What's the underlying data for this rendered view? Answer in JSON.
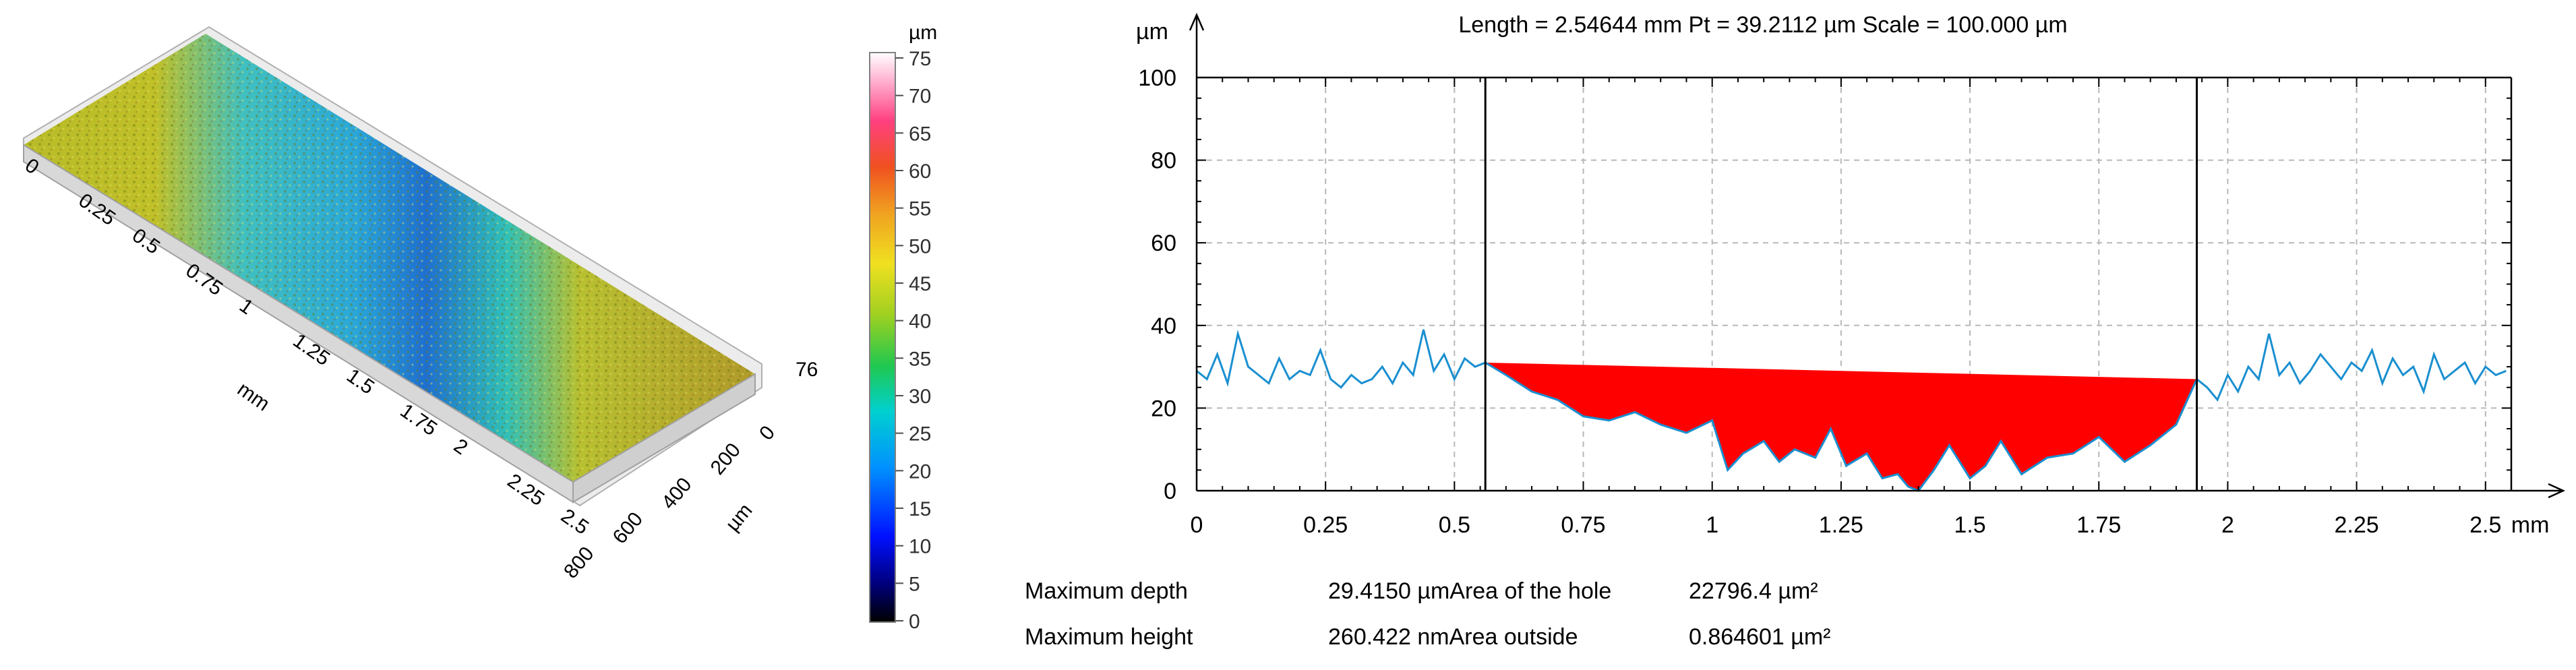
{
  "surface3d": {
    "x_ticks": [
      "0",
      "0.25",
      "0.5",
      "0.75",
      "1",
      "1.25",
      "1.5",
      "1.75",
      "2",
      "2.25",
      "2.5"
    ],
    "x_unit": "mm",
    "y_ticks": [
      "0",
      "200",
      "400",
      "600",
      "800"
    ],
    "y_unit": "µm",
    "z_max_label": "76",
    "colors": {
      "low": "#1030c0",
      "mid": "#20c0c8",
      "high": "#c8c020"
    }
  },
  "colorbar": {
    "unit": "µm",
    "ticks": [
      "75",
      "70",
      "65",
      "60",
      "55",
      "50",
      "45",
      "40",
      "35",
      "30",
      "25",
      "20",
      "15",
      "10",
      "5",
      "0"
    ]
  },
  "chart_data": {
    "type": "line",
    "title": "Length = 2.54644 mm  Pt = 39.2112 µm  Scale = 100.000 µm",
    "xlabel": "mm",
    "ylabel": "µm",
    "xlim": [
      0,
      2.55
    ],
    "ylim": [
      0,
      100
    ],
    "x_ticks": [
      0,
      0.25,
      0.5,
      0.75,
      1,
      1.25,
      1.5,
      1.75,
      2,
      2.25,
      2.5
    ],
    "x_tick_labels": [
      "0",
      "0.25",
      "0.5",
      "0.75",
      "1",
      "1.25",
      "1.5",
      "1.75",
      "2",
      "2.25",
      "2.5"
    ],
    "y_ticks": [
      0,
      20,
      40,
      60,
      80,
      100
    ],
    "grid": true,
    "cursors": [
      0.56,
      1.94
    ],
    "profile_color": "#1a8fd0",
    "fill_color": "#ff0000",
    "hole_top": [
      [
        0.56,
        31
      ],
      [
        1.94,
        27
      ]
    ],
    "series": [
      {
        "x": [
          0,
          0.02,
          0.04,
          0.06,
          0.08,
          0.1,
          0.12,
          0.14,
          0.16,
          0.18,
          0.2,
          0.22,
          0.24,
          0.26,
          0.28,
          0.3,
          0.32,
          0.34,
          0.36,
          0.38,
          0.4,
          0.42,
          0.44,
          0.46,
          0.48,
          0.5,
          0.52,
          0.54,
          0.56,
          0.6,
          0.65,
          0.7,
          0.75,
          0.8,
          0.85,
          0.9,
          0.95,
          1.0,
          1.03,
          1.06,
          1.1,
          1.13,
          1.16,
          1.2,
          1.23,
          1.26,
          1.3,
          1.33,
          1.36,
          1.38,
          1.4,
          1.43,
          1.46,
          1.5,
          1.53,
          1.56,
          1.6,
          1.65,
          1.7,
          1.75,
          1.8,
          1.85,
          1.9,
          1.94,
          1.96,
          1.98,
          2.0,
          2.02,
          2.04,
          2.06,
          2.08,
          2.1,
          2.12,
          2.14,
          2.16,
          2.18,
          2.2,
          2.22,
          2.24,
          2.26,
          2.28,
          2.3,
          2.32,
          2.34,
          2.36,
          2.38,
          2.4,
          2.42,
          2.44,
          2.46,
          2.48,
          2.5,
          2.52,
          2.54
        ],
        "y": [
          29,
          27,
          33,
          26,
          38,
          30,
          28,
          26,
          32,
          27,
          29,
          28,
          34,
          27,
          25,
          28,
          26,
          27,
          30,
          26,
          31,
          28,
          39,
          29,
          33,
          27,
          32,
          30,
          31,
          28,
          24,
          22,
          18,
          17,
          19,
          16,
          14,
          17,
          5,
          9,
          12,
          7,
          10,
          8,
          15,
          6,
          9,
          3,
          4,
          1,
          0,
          5,
          11,
          3,
          6,
          12,
          4,
          8,
          9,
          13,
          7,
          11,
          16,
          27,
          25,
          22,
          28,
          24,
          30,
          27,
          38,
          28,
          31,
          26,
          29,
          33,
          30,
          27,
          31,
          29,
          34,
          26,
          32,
          28,
          30,
          24,
          33,
          27,
          29,
          31,
          26,
          30,
          28,
          29
        ]
      }
    ]
  },
  "stats": {
    "max_depth_label": "Maximum depth",
    "max_depth_value": "29.4150 µmArea of the hole",
    "hole_area_value": "22796.4 µm²",
    "max_height_label": "Maximum height",
    "max_height_value": "260.422 nmArea outside",
    "outside_area_value": "0.864601 µm²"
  }
}
